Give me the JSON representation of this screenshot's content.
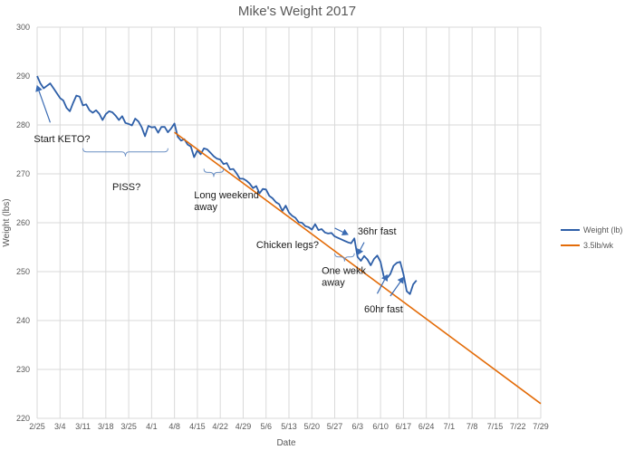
{
  "chart_data": {
    "type": "line",
    "title": "Mike's Weight 2017",
    "xlabel": "Date",
    "ylabel": "Weight (lbs)",
    "ylim": [
      220,
      300
    ],
    "y_ticks": [
      "220",
      "230",
      "240",
      "250",
      "260",
      "270",
      "280",
      "290",
      "300"
    ],
    "x_ticks": [
      "2/25",
      "3/4",
      "3/11",
      "3/18",
      "3/25",
      "4/1",
      "4/8",
      "4/15",
      "4/22",
      "4/29",
      "5/6",
      "5/13",
      "5/20",
      "5/27",
      "6/3",
      "6/10",
      "6/17",
      "6/24",
      "7/1",
      "7/8",
      "7/15",
      "7/22",
      "7/29"
    ],
    "xlim": [
      "2017-02-25",
      "2017-07-29"
    ],
    "grid": true,
    "legend_position": "right",
    "series": [
      {
        "name": "Weight (lb)",
        "color": "#2e5fa8",
        "points": [
          [
            "2017-02-25",
            290.0
          ],
          [
            "2017-02-26",
            288.5
          ],
          [
            "2017-02-27",
            287.5
          ],
          [
            "2017-02-28",
            288.0
          ],
          [
            "2017-03-01",
            288.5
          ],
          [
            "2017-03-02",
            287.5
          ],
          [
            "2017-03-03",
            286.5
          ],
          [
            "2017-03-04",
            285.5
          ],
          [
            "2017-03-05",
            285.0
          ],
          [
            "2017-03-06",
            283.5
          ],
          [
            "2017-03-07",
            282.8
          ],
          [
            "2017-03-08",
            284.5
          ],
          [
            "2017-03-09",
            286.0
          ],
          [
            "2017-03-10",
            285.8
          ],
          [
            "2017-03-11",
            284.0
          ],
          [
            "2017-03-12",
            284.2
          ],
          [
            "2017-03-13",
            283.0
          ],
          [
            "2017-03-14",
            282.5
          ],
          [
            "2017-03-15",
            283.0
          ],
          [
            "2017-03-16",
            282.3
          ],
          [
            "2017-03-17",
            281.0
          ],
          [
            "2017-03-18",
            282.2
          ],
          [
            "2017-03-19",
            282.8
          ],
          [
            "2017-03-20",
            282.6
          ],
          [
            "2017-03-21",
            281.9
          ],
          [
            "2017-03-22",
            281.0
          ],
          [
            "2017-03-23",
            281.8
          ],
          [
            "2017-03-24",
            280.4
          ],
          [
            "2017-03-25",
            280.2
          ],
          [
            "2017-03-26",
            279.9
          ],
          [
            "2017-03-27",
            281.3
          ],
          [
            "2017-03-28",
            280.7
          ],
          [
            "2017-03-29",
            279.5
          ],
          [
            "2017-03-30",
            277.7
          ],
          [
            "2017-03-31",
            279.8
          ],
          [
            "2017-04-01",
            279.5
          ],
          [
            "2017-04-02",
            279.6
          ],
          [
            "2017-04-03",
            278.4
          ],
          [
            "2017-04-04",
            279.6
          ],
          [
            "2017-04-05",
            279.6
          ],
          [
            "2017-04-06",
            278.5
          ],
          [
            "2017-04-07",
            279.3
          ],
          [
            "2017-04-08",
            280.3
          ],
          [
            "2017-04-09",
            277.6
          ],
          [
            "2017-04-10",
            276.8
          ],
          [
            "2017-04-11",
            277.1
          ],
          [
            "2017-04-12",
            276.0
          ],
          [
            "2017-04-13",
            275.6
          ],
          [
            "2017-04-14",
            273.4
          ],
          [
            "2017-04-15",
            274.8
          ],
          [
            "2017-04-16",
            274.0
          ],
          [
            "2017-04-17",
            275.2
          ],
          [
            "2017-04-18",
            275.0
          ],
          [
            "2017-04-19",
            274.3
          ],
          [
            "2017-04-20",
            273.6
          ],
          [
            "2017-04-21",
            273.1
          ],
          [
            "2017-04-22",
            272.9
          ],
          [
            "2017-04-23",
            272.0
          ],
          [
            "2017-04-24",
            272.2
          ],
          [
            "2017-04-25",
            270.9
          ],
          [
            "2017-04-26",
            271.0
          ],
          [
            "2017-04-27",
            270.1
          ],
          [
            "2017-04-28",
            269.0
          ],
          [
            "2017-04-29",
            269.0
          ],
          [
            "2017-04-30",
            268.6
          ],
          [
            "2017-05-01",
            268.0
          ],
          [
            "2017-05-02",
            267.1
          ],
          [
            "2017-05-03",
            267.5
          ],
          [
            "2017-05-04",
            266.0
          ],
          [
            "2017-05-05",
            266.9
          ],
          [
            "2017-05-06",
            266.8
          ],
          [
            "2017-05-07",
            265.5
          ],
          [
            "2017-05-08",
            265.0
          ],
          [
            "2017-05-09",
            264.2
          ],
          [
            "2017-05-10",
            263.8
          ],
          [
            "2017-05-11",
            262.4
          ],
          [
            "2017-05-12",
            263.5
          ],
          [
            "2017-05-13",
            262.1
          ],
          [
            "2017-05-14",
            261.4
          ],
          [
            "2017-05-15",
            261.0
          ],
          [
            "2017-05-16",
            260.1
          ],
          [
            "2017-05-17",
            260.0
          ],
          [
            "2017-05-18",
            259.3
          ],
          [
            "2017-05-19",
            259.1
          ],
          [
            "2017-05-20",
            258.6
          ],
          [
            "2017-05-21",
            259.7
          ],
          [
            "2017-05-22",
            258.5
          ],
          [
            "2017-05-23",
            258.7
          ],
          [
            "2017-05-24",
            258.0
          ],
          [
            "2017-05-25",
            257.8
          ],
          [
            "2017-05-26",
            257.9
          ],
          [
            "2017-05-27",
            257.2
          ],
          [
            "2017-05-31",
            256.0
          ],
          [
            "2017-06-01",
            255.8
          ],
          [
            "2017-06-02",
            256.8
          ],
          [
            "2017-06-03",
            253.0
          ],
          [
            "2017-06-04",
            252.2
          ],
          [
            "2017-06-05",
            253.2
          ],
          [
            "2017-06-06",
            252.5
          ],
          [
            "2017-06-07",
            251.3
          ],
          [
            "2017-06-08",
            252.6
          ],
          [
            "2017-06-09",
            253.3
          ],
          [
            "2017-06-10",
            252.0
          ],
          [
            "2017-06-11",
            249.0
          ],
          [
            "2017-06-12",
            248.7
          ],
          [
            "2017-06-13",
            249.5
          ],
          [
            "2017-06-14",
            251.2
          ],
          [
            "2017-06-15",
            251.8
          ],
          [
            "2017-06-16",
            252.0
          ],
          [
            "2017-06-17",
            249.5
          ],
          [
            "2017-06-18",
            246.0
          ],
          [
            "2017-06-19",
            245.4
          ],
          [
            "2017-06-20",
            247.4
          ],
          [
            "2017-06-21",
            248.2
          ]
        ]
      },
      {
        "name": "3.5lb/wk",
        "color": "#e36c09",
        "points": [
          [
            "2017-04-08",
            278.5
          ],
          [
            "2017-07-29",
            223.0
          ]
        ]
      }
    ],
    "annotations": [
      {
        "lines": [
          "Start KETO?"
        ],
        "x": "2017-02-24",
        "y": 276.5
      },
      {
        "lines": [
          "PISS?"
        ],
        "x": "2017-03-20",
        "y": 266.7
      },
      {
        "lines": [
          "Long weekend",
          "away"
        ],
        "x": "2017-04-14",
        "y": 265.0
      },
      {
        "lines": [
          "Chicken legs?"
        ],
        "x": "2017-05-03",
        "y": 254.8
      },
      {
        "lines": [
          "36hr fast"
        ],
        "x": "2017-06-03",
        "y": 257.6
      },
      {
        "lines": [
          "One wekk",
          "away"
        ],
        "x": "2017-05-23",
        "y": 249.5
      },
      {
        "lines": [
          "60hr fast"
        ],
        "x": "2017-06-05",
        "y": 241.7
      }
    ],
    "arrows": [
      {
        "from": [
          "2017-03-01",
          280.5
        ],
        "to": [
          "2017-02-25",
          288.0
        ]
      },
      {
        "from": [
          "2017-05-27",
          258.9
        ],
        "to": [
          "2017-05-31",
          257.6
        ]
      },
      {
        "from": [
          "2017-06-05",
          256.0
        ],
        "to": [
          "2017-06-03",
          253.5
        ]
      },
      {
        "from": [
          "2017-06-09",
          245.5
        ],
        "to": [
          "2017-06-12",
          249.3
        ]
      },
      {
        "from": [
          "2017-06-13",
          245.0
        ],
        "to": [
          "2017-06-17",
          248.8
        ]
      }
    ],
    "braces": [
      {
        "x1": "2017-03-11",
        "x2": "2017-04-06",
        "y": 274.5,
        "dir": "down"
      },
      {
        "x1": "2017-04-17",
        "x2": "2017-04-23",
        "y": 270.3,
        "dir": "down"
      },
      {
        "x1": "2017-05-27",
        "x2": "2017-06-02",
        "y": 253.0,
        "dir": "down"
      }
    ]
  }
}
